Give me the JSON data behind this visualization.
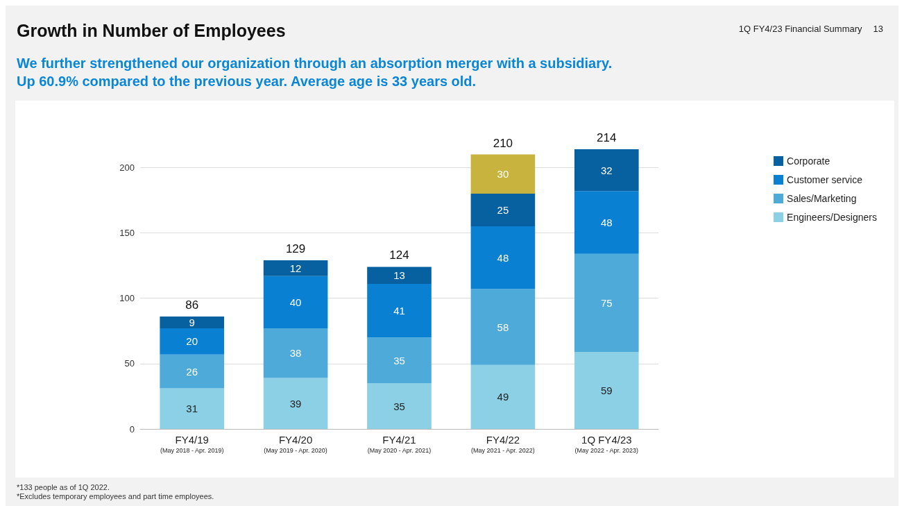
{
  "chart_data": {
    "type": "bar",
    "title": "Growth in Number of Employees",
    "subtitle": "We further strengthened our organization through an absorption merger with a subsidiary.\nUp 60.9% compared to the previous year. Average age is 33 years old.",
    "categories": [
      "FY4/19\n(May 2018 - Apr. 2019)",
      "FY4/20\n(May 2019 - Apr. 2020)",
      "FY4/21\n(May 2020 - Apr. 2021)",
      "FY4/22\n(May 2021 - Apr. 2022)",
      "1Q FY4/23\n(May 2022 - Apr. 2023)"
    ],
    "series": [
      {
        "name": "Engineers/Designers",
        "color": "#8bd0e4",
        "values": [
          31,
          39,
          35,
          49,
          59
        ]
      },
      {
        "name": "Sales/Marketing",
        "color": "#4eaad9",
        "values": [
          26,
          38,
          35,
          58,
          75
        ]
      },
      {
        "name": "Customer service",
        "color": "#0a80d2",
        "values": [
          20,
          40,
          41,
          48,
          48
        ]
      },
      {
        "name": "Corporate",
        "color": "#07609f",
        "values": [
          9,
          12,
          13,
          25,
          32
        ]
      },
      {
        "color": "#c8b33f",
        "values": [
          null,
          null,
          null,
          30,
          null
        ]
      }
    ],
    "stacked": true,
    "data_labels": true,
    "totals": [
      "86",
      "129",
      "124",
      "210",
      "214"
    ],
    "ylim": [
      0,
      214
    ],
    "yticks": [
      0,
      50,
      100,
      150,
      200
    ],
    "grid": "y",
    "legend": "right",
    "annotations": [
      "1Q FY4/23 Financial Summary",
      "13",
      "*133 people as of 1Q 2022.\n*Excludes temporary employees and part time employees."
    ]
  }
}
